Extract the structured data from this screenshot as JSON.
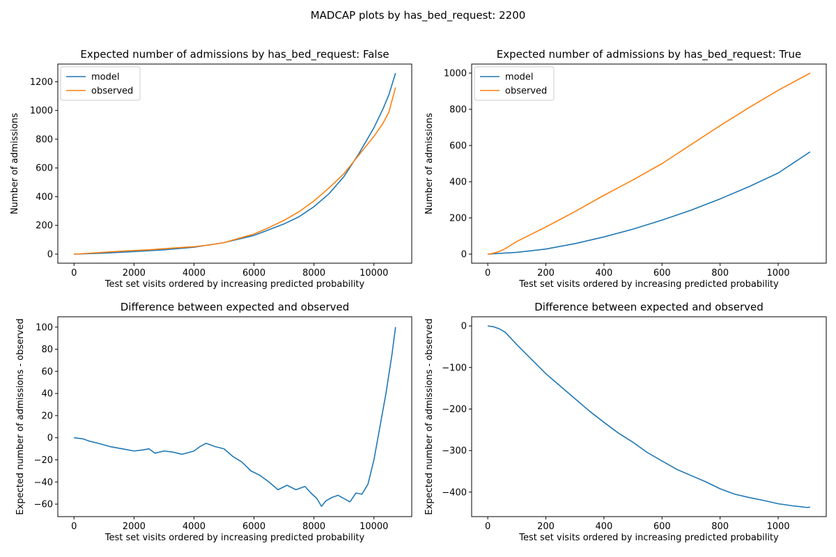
{
  "figure": {
    "suptitle": "MADCAP plots by has_bed_request: 2200"
  },
  "colors": {
    "model": "#1f77b4",
    "observed": "#ff7f0e",
    "diff": "#1f77b4"
  },
  "chart_data": [
    {
      "id": "top-left",
      "type": "line",
      "title": "Expected number of admissions by has_bed_request: False",
      "xlabel": "Test set visits ordered by increasing predicted probability",
      "ylabel": "Number of admissions",
      "xlim": [
        -540,
        11260
      ],
      "ylim": [
        -63,
        1323
      ],
      "xticks": [
        0,
        2000,
        4000,
        6000,
        8000,
        10000
      ],
      "yticks": [
        0,
        200,
        400,
        600,
        800,
        1000,
        1200
      ],
      "legend": "upper-left",
      "series": [
        {
          "name": "model",
          "color": "#1f77b4",
          "x": [
            0,
            1000,
            2000,
            3000,
            4000,
            5000,
            6000,
            7000,
            7500,
            8000,
            8500,
            9000,
            9500,
            10000,
            10300,
            10500,
            10720
          ],
          "y": [
            0,
            7,
            18,
            30,
            48,
            80,
            130,
            210,
            260,
            330,
            420,
            540,
            700,
            880,
            1010,
            1110,
            1260
          ]
        },
        {
          "name": "observed",
          "color": "#ff7f0e",
          "x": [
            0,
            500,
            1000,
            1500,
            2000,
            2500,
            3000,
            3500,
            4000,
            4500,
            5000,
            5500,
            6000,
            6500,
            7000,
            7500,
            8000,
            8500,
            9000,
            9500,
            10000,
            10300,
            10500,
            10720
          ],
          "y": [
            0,
            6,
            13,
            20,
            25,
            30,
            38,
            45,
            52,
            63,
            80,
            110,
            140,
            185,
            235,
            295,
            370,
            460,
            560,
            690,
            820,
            910,
            990,
            1160
          ]
        }
      ]
    },
    {
      "id": "top-right",
      "type": "line",
      "title": "Expected number of admissions by has_bed_request: True",
      "xlabel": "Test set visits ordered by increasing predicted probability",
      "ylabel": "Number of admissions",
      "xlim": [
        -55.5,
        1165.5
      ],
      "ylim": [
        -50,
        1050
      ],
      "xticks": [
        0,
        200,
        400,
        600,
        800,
        1000
      ],
      "yticks": [
        0,
        200,
        400,
        600,
        800,
        1000
      ],
      "legend": "upper-left",
      "series": [
        {
          "name": "model",
          "color": "#1f77b4",
          "x": [
            0,
            100,
            200,
            300,
            400,
            500,
            600,
            700,
            800,
            900,
            1000,
            1110
          ],
          "y": [
            0,
            10,
            28,
            58,
            95,
            138,
            188,
            243,
            305,
            373,
            448,
            565
          ]
        },
        {
          "name": "observed",
          "color": "#ff7f0e",
          "x": [
            0,
            20,
            40,
            60,
            80,
            100,
            200,
            300,
            400,
            500,
            600,
            700,
            800,
            900,
            1000,
            1110
          ],
          "y": [
            0,
            5,
            15,
            30,
            50,
            70,
            150,
            235,
            325,
            410,
            500,
            605,
            710,
            810,
            905,
            1000
          ]
        }
      ]
    },
    {
      "id": "bottom-left",
      "type": "line",
      "title": "Difference between expected and observed",
      "xlabel": "Test set visits ordered by increasing predicted probability",
      "ylabel": "Expected number of admissions - observed",
      "xlim": [
        -540,
        11260
      ],
      "ylim": [
        -71.3,
        109.3
      ],
      "xticks": [
        0,
        2000,
        4000,
        6000,
        8000,
        10000
      ],
      "yticks": [
        -60,
        -40,
        -20,
        0,
        20,
        40,
        60,
        80,
        100
      ],
      "legend": "none",
      "series": [
        {
          "color": "#1f77b4",
          "x": [
            0,
            300,
            500,
            800,
            1200,
            1600,
            2000,
            2300,
            2500,
            2700,
            3000,
            3300,
            3600,
            4000,
            4200,
            4400,
            4700,
            5000,
            5300,
            5600,
            5900,
            6200,
            6500,
            6800,
            7100,
            7400,
            7700,
            7900,
            8100,
            8250,
            8400,
            8600,
            8800,
            9000,
            9200,
            9400,
            9600,
            9800,
            10000,
            10200,
            10400,
            10600,
            10720
          ],
          "y": [
            0,
            -1,
            -3,
            -5,
            -8,
            -10,
            -12,
            -11,
            -10,
            -14,
            -12,
            -13,
            -15,
            -12,
            -8,
            -5,
            -8,
            -10,
            -17,
            -22,
            -30,
            -34,
            -40,
            -47,
            -43,
            -47,
            -44,
            -50,
            -55,
            -62,
            -57,
            -54,
            -52,
            -55,
            -58,
            -50,
            -51,
            -42,
            -20,
            10,
            40,
            75,
            100
          ]
        }
      ]
    },
    {
      "id": "bottom-right",
      "type": "line",
      "title": "Difference between expected and observed",
      "xlabel": "Test set visits ordered by increasing predicted probability",
      "ylabel": "Expected number of admissions - observed",
      "xlim": [
        -55.5,
        1165.5
      ],
      "ylim": [
        -459,
        22
      ],
      "xticks": [
        0,
        200,
        400,
        600,
        800,
        1000
      ],
      "yticks": [
        -400,
        -300,
        -200,
        -100,
        0
      ],
      "legend": "none",
      "series": [
        {
          "color": "#1f77b4",
          "x": [
            0,
            20,
            40,
            60,
            80,
            100,
            150,
            200,
            250,
            300,
            350,
            400,
            450,
            500,
            550,
            600,
            650,
            700,
            750,
            800,
            850,
            900,
            950,
            1000,
            1050,
            1100,
            1110
          ],
          "y": [
            0,
            -2,
            -7,
            -15,
            -30,
            -45,
            -80,
            -115,
            -145,
            -175,
            -205,
            -232,
            -258,
            -280,
            -305,
            -325,
            -345,
            -360,
            -375,
            -392,
            -405,
            -413,
            -420,
            -428,
            -433,
            -437,
            -436
          ]
        }
      ]
    }
  ]
}
